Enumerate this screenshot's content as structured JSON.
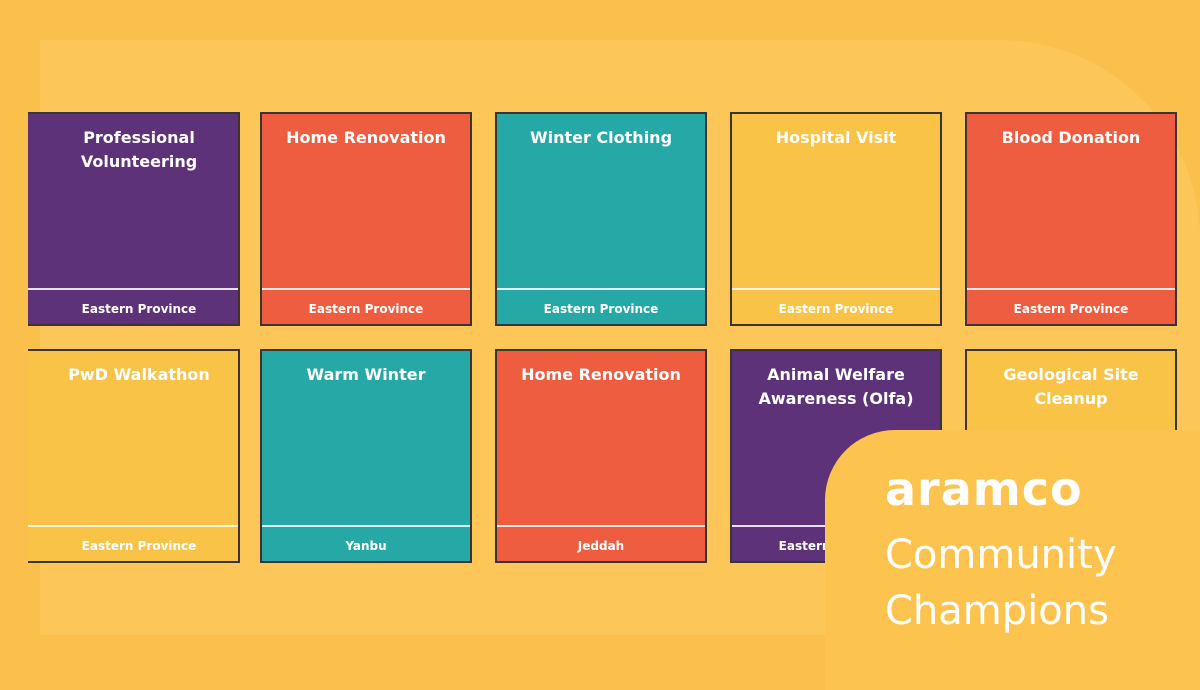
{
  "cards": [
    {
      "title": "Professional Volunteering",
      "location": "Eastern Province",
      "color": "#5d3279"
    },
    {
      "title": "Home Renovation",
      "location": "Eastern Province",
      "color": "#ee5d3f"
    },
    {
      "title": "Winter Clothing",
      "location": "Eastern Province",
      "color": "#26a8a6"
    },
    {
      "title": "Hospital Visit",
      "location": "Eastern Province",
      "color": "#f9c347"
    },
    {
      "title": "Blood Donation",
      "location": "Eastern Province",
      "color": "#ee5d3f"
    },
    {
      "title": "PwD Walkathon",
      "location": "Eastern Province",
      "color": "#f9c347"
    },
    {
      "title": "Warm Winter",
      "location": "Yanbu",
      "color": "#26a8a6"
    },
    {
      "title": "Home Renovation",
      "location": "Jeddah",
      "color": "#ee5d3f"
    },
    {
      "title": "Animal Welfare Awareness (Olfa)",
      "location": "Eastern Province",
      "color": "#5d3279"
    },
    {
      "title": "Geological Site Cleanup",
      "color": "#f9c347"
    }
  ],
  "brand": {
    "logo": "aramco",
    "tagline_1": "Community",
    "tagline_2": "Champions"
  }
}
